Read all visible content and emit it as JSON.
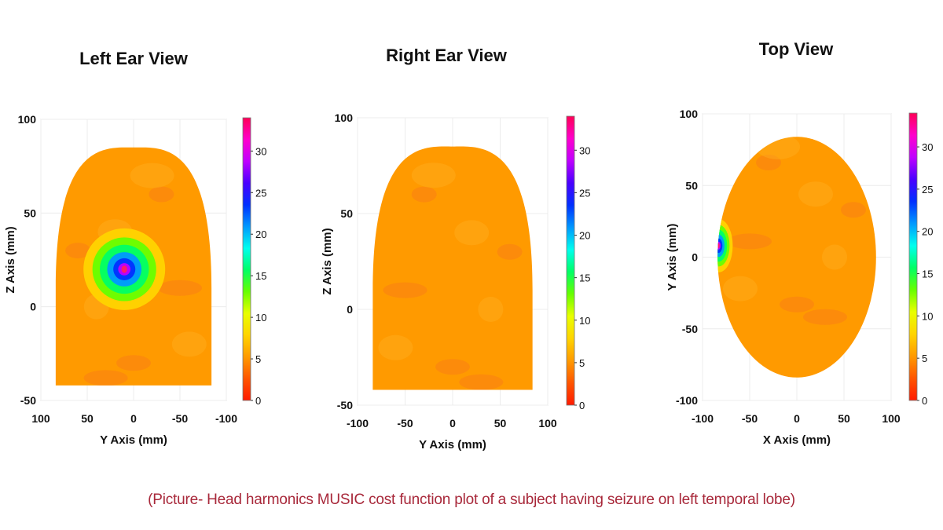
{
  "caption": "(Picture- Head harmonics MUSIC cost function plot of a subject having seizure on left temporal lobe)",
  "colorbar": {
    "ticks": [
      0,
      5,
      10,
      15,
      20,
      25,
      30
    ],
    "range": [
      0,
      34
    ],
    "colors": [
      "#ff1a00",
      "#ff5500",
      "#ff9a00",
      "#ffd400",
      "#e8ff00",
      "#66ff00",
      "#00ff66",
      "#00ffee",
      "#0099ff",
      "#0030ff",
      "#4a00ff",
      "#c000ff",
      "#ff00cc",
      "#ff0055"
    ]
  },
  "colors": {
    "background_field": "#fa8a1e",
    "caption": "#a8283a"
  },
  "chart_data": [
    {
      "type": "heatmap",
      "title": "Left Ear View",
      "xlabel": "Y Axis (mm)",
      "ylabel": "Z Axis (mm)",
      "xlim": [
        100,
        -100
      ],
      "ylim": [
        -50,
        100
      ],
      "xticks": [
        100,
        50,
        0,
        -50,
        -100
      ],
      "yticks": [
        100,
        50,
        0,
        -50
      ],
      "shape": "dome",
      "background_value": 4,
      "hotspot": {
        "x": 10,
        "y": 20,
        "peak": 28
      }
    },
    {
      "type": "heatmap",
      "title": "Right Ear View",
      "xlabel": "Y Axis (mm)",
      "ylabel": "Z Axis (mm)",
      "xlim": [
        -100,
        100
      ],
      "ylim": [
        -50,
        100
      ],
      "xticks": [
        -100,
        -50,
        0,
        50,
        100
      ],
      "yticks": [
        100,
        50,
        0,
        -50
      ],
      "shape": "dome",
      "background_value": 4
    },
    {
      "type": "heatmap",
      "title": "Top View",
      "xlabel": "X Axis (mm)",
      "ylabel": "Y Axis (mm)",
      "xlim": [
        -100,
        100
      ],
      "ylim": [
        -100,
        100
      ],
      "xticks": [
        -100,
        -50,
        0,
        50,
        100
      ],
      "yticks": [
        100,
        50,
        0,
        -50,
        -100
      ],
      "shape": "circle",
      "background_value": 4,
      "hotspot": {
        "x": -83,
        "y": 8,
        "peak": 28
      }
    }
  ]
}
